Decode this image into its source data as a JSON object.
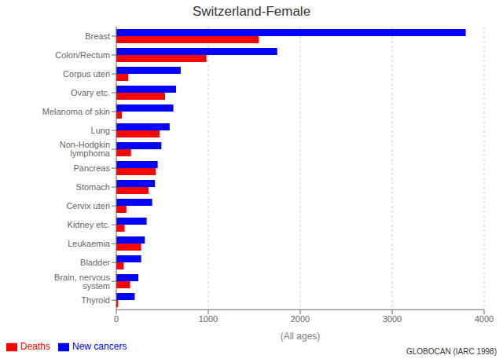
{
  "chart_data": {
    "type": "bar",
    "orientation": "horizontal",
    "title": "Switzerland-Female",
    "xlabel": "(All ages)",
    "annotations": [
      "GLOBOCAN (IARC 1998)"
    ],
    "categories": [
      "Breast",
      "Colon/Rectum",
      "Corpus uteri",
      "Ovary etc.",
      "Melanoma of skin",
      "Lung",
      "Non-Hodgkin lymphoma",
      "Pancreas",
      "Stomach",
      "Cervix uteri",
      "Kidney etc.",
      "Leukaemia",
      "Bladder",
      "Brain, nervous system",
      "Thyroid"
    ],
    "series": [
      {
        "name": "New cancers",
        "color": "#0000ff",
        "values": [
          3800,
          1750,
          700,
          650,
          620,
          580,
          490,
          450,
          420,
          390,
          330,
          310,
          270,
          240,
          200
        ]
      },
      {
        "name": "Deaths",
        "color": "#ff0000",
        "values": [
          1550,
          980,
          130,
          530,
          60,
          470,
          160,
          430,
          350,
          110,
          90,
          270,
          80,
          150,
          20
        ]
      }
    ],
    "xlim": [
      0,
      4000
    ],
    "xticks": [
      0,
      1000,
      2000,
      3000,
      4000
    ],
    "grid": true,
    "legend": "lower left"
  }
}
